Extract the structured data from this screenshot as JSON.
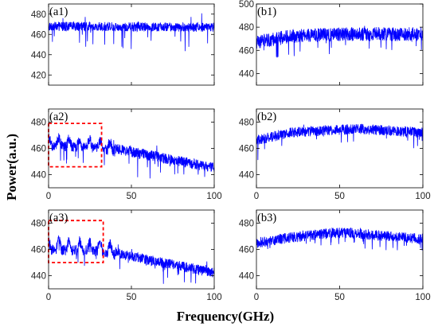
{
  "figure": {
    "xlabel": "Frequency(GHz)",
    "ylabel": "Power(a.u.)"
  },
  "chart_data": [
    {
      "type": "line",
      "id": "a1",
      "panel_label": "(a1)",
      "xlim": [
        0,
        100
      ],
      "ylim": [
        410,
        490
      ],
      "xticks": [
        0,
        50,
        100
      ],
      "xtick_labels": [
        "",
        "",
        ""
      ],
      "yticks": [
        420,
        440,
        460,
        480
      ],
      "series": [
        {
          "color": "#0000ff",
          "trend": [
            [
              0,
              468
            ],
            [
              100,
              467
            ]
          ],
          "noise": 4.5,
          "spike": 22
        }
      ]
    },
    {
      "type": "line",
      "id": "b1",
      "panel_label": "(b1)",
      "xlim": [
        0,
        100
      ],
      "ylim": [
        430,
        500
      ],
      "xticks": [
        0,
        50,
        100
      ],
      "xtick_labels": [
        "",
        "",
        ""
      ],
      "yticks": [
        440,
        460,
        480,
        500
      ],
      "series": [
        {
          "color": "#0000ff",
          "trend": [
            [
              0,
              467
            ],
            [
              20,
              472
            ],
            [
              50,
              474
            ],
            [
              100,
              474
            ]
          ],
          "noise": 6,
          "spike": 20
        }
      ]
    },
    {
      "type": "line",
      "id": "a2",
      "panel_label": "(a2)",
      "xlim": [
        0,
        100
      ],
      "ylim": [
        430,
        490
      ],
      "xticks": [
        0,
        50,
        100
      ],
      "xtick_labels": [
        "0",
        "50",
        "100"
      ],
      "yticks": [
        440,
        460,
        480
      ],
      "highlight_box": {
        "x": [
          0,
          32
        ],
        "y": [
          446,
          479
        ]
      },
      "series": [
        {
          "color": "#0000ff",
          "trend": [
            [
              0,
              464
            ],
            [
              30,
              462
            ],
            [
              60,
              455
            ],
            [
              100,
              445
            ]
          ],
          "noise": 4,
          "spike": 16,
          "ripple": 6
        }
      ]
    },
    {
      "type": "line",
      "id": "b2",
      "panel_label": "(b2)",
      "xlim": [
        0,
        100
      ],
      "ylim": [
        430,
        490
      ],
      "xticks": [
        0,
        50,
        100
      ],
      "xtick_labels": [
        "0",
        "50",
        "100"
      ],
      "yticks": [
        440,
        460,
        480
      ],
      "series": [
        {
          "color": "#0000ff",
          "trend": [
            [
              0,
              466
            ],
            [
              20,
              472
            ],
            [
              60,
              475
            ],
            [
              100,
              472
            ]
          ],
          "noise": 4,
          "spike": 12
        }
      ]
    },
    {
      "type": "line",
      "id": "a3",
      "panel_label": "(a3)",
      "xlim": [
        0,
        100
      ],
      "ylim": [
        430,
        490
      ],
      "xticks": [
        0,
        50,
        100
      ],
      "xtick_labels": [
        "0",
        "50",
        "100"
      ],
      "yticks": [
        440,
        460,
        480
      ],
      "highlight_box": {
        "x": [
          0,
          33
        ],
        "y": [
          450,
          482
        ]
      },
      "series": [
        {
          "color": "#0000ff",
          "trend": [
            [
              0,
              462
            ],
            [
              30,
              461
            ],
            [
              60,
              452
            ],
            [
              100,
              442
            ]
          ],
          "noise": 4,
          "spike": 14,
          "ripple": 7
        }
      ]
    },
    {
      "type": "line",
      "id": "b3",
      "panel_label": "(b3)",
      "xlim": [
        0,
        100
      ],
      "ylim": [
        430,
        490
      ],
      "xticks": [
        0,
        50,
        100
      ],
      "xtick_labels": [
        "0",
        "50",
        "100"
      ],
      "yticks": [
        440,
        460,
        480
      ],
      "series": [
        {
          "color": "#0000ff",
          "trend": [
            [
              0,
              465
            ],
            [
              20,
              469
            ],
            [
              50,
              473
            ],
            [
              100,
              468
            ]
          ],
          "noise": 4,
          "spike": 10
        }
      ]
    }
  ]
}
